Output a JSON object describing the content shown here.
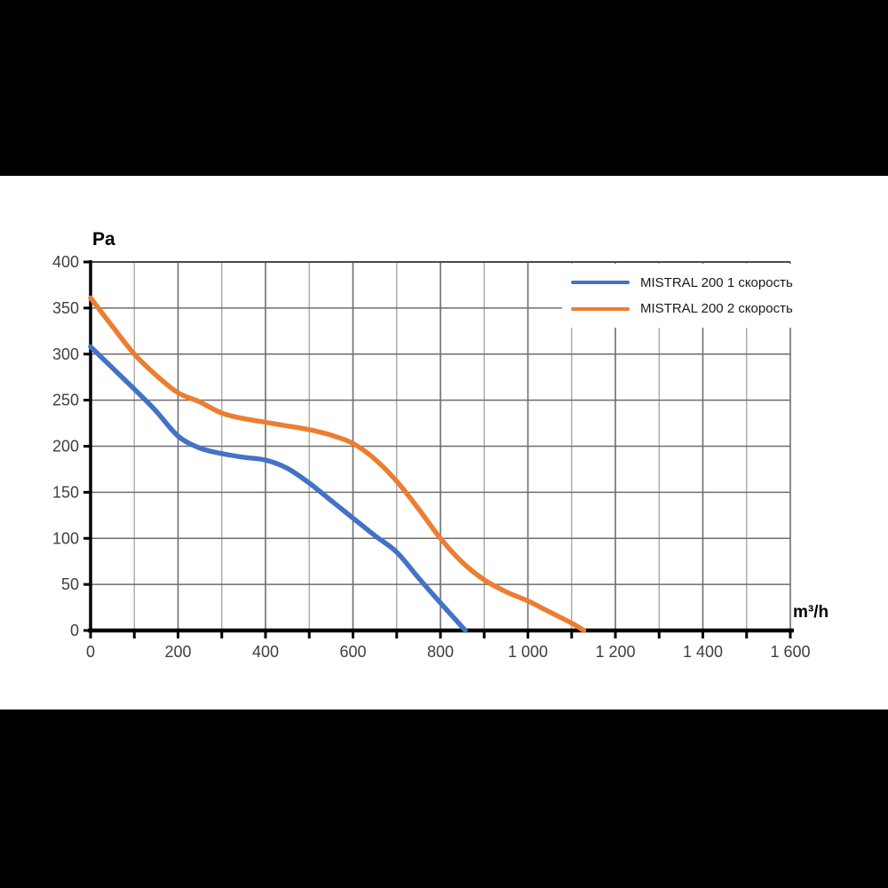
{
  "page": {
    "background_color": "#000000",
    "panel_background_color": "#ffffff"
  },
  "chart_data": {
    "type": "line",
    "title": "",
    "y_axis_title": "Pa",
    "x_axis_title": "m³/h",
    "x_range": [
      0,
      1600
    ],
    "y_range": [
      0,
      400
    ],
    "grid_on": true,
    "legend_position": "top-right",
    "axis_color": "#000000",
    "tick_label_color": "#3f3f3f",
    "grid": {
      "horizontal_color": "#6e6e6e",
      "major_vertical_color": "#6e6e6e",
      "minor_vertical_color": "#9c9c9c",
      "frame_color": "#4a4a4a"
    },
    "x_labeled_ticks": [
      {
        "value": 0,
        "label": "0"
      },
      {
        "value": 200,
        "label": "200"
      },
      {
        "value": 400,
        "label": "400"
      },
      {
        "value": 600,
        "label": "600"
      },
      {
        "value": 800,
        "label": "800"
      },
      {
        "value": 1000,
        "label": "1 000"
      },
      {
        "value": 1200,
        "label": "1 200"
      },
      {
        "value": 1400,
        "label": "1 400"
      },
      {
        "value": 1600,
        "label": "1 600"
      }
    ],
    "x_minor_ticks": [
      100,
      300,
      500,
      700,
      900,
      1100,
      1300,
      1500
    ],
    "y_ticks": [
      {
        "value": 0,
        "label": "0"
      },
      {
        "value": 50,
        "label": "50"
      },
      {
        "value": 100,
        "label": "100"
      },
      {
        "value": 150,
        "label": "150"
      },
      {
        "value": 200,
        "label": "200"
      },
      {
        "value": 250,
        "label": "250"
      },
      {
        "value": 300,
        "label": "300"
      },
      {
        "value": 350,
        "label": "350"
      },
      {
        "value": 400,
        "label": "400"
      }
    ],
    "series": [
      {
        "name": "MISTRAL 200 1 скорость",
        "color": "#4472c4",
        "points": [
          [
            0,
            308
          ],
          [
            50,
            285
          ],
          [
            100,
            262
          ],
          [
            150,
            238
          ],
          [
            200,
            211
          ],
          [
            250,
            198
          ],
          [
            300,
            192
          ],
          [
            350,
            188
          ],
          [
            400,
            185
          ],
          [
            450,
            176
          ],
          [
            500,
            160
          ],
          [
            550,
            141
          ],
          [
            600,
            122
          ],
          [
            650,
            103
          ],
          [
            700,
            85
          ],
          [
            750,
            57
          ],
          [
            800,
            30
          ],
          [
            857,
            0
          ]
        ]
      },
      {
        "name": "MISTRAL 200 2 скорость",
        "color": "#ed7d31",
        "points": [
          [
            0,
            361
          ],
          [
            50,
            330
          ],
          [
            100,
            300
          ],
          [
            150,
            277
          ],
          [
            200,
            258
          ],
          [
            250,
            248
          ],
          [
            300,
            236
          ],
          [
            350,
            230
          ],
          [
            400,
            226
          ],
          [
            450,
            222
          ],
          [
            500,
            218
          ],
          [
            550,
            212
          ],
          [
            600,
            203
          ],
          [
            650,
            186
          ],
          [
            700,
            162
          ],
          [
            750,
            132
          ],
          [
            800,
            100
          ],
          [
            850,
            74
          ],
          [
            900,
            55
          ],
          [
            950,
            42
          ],
          [
            1000,
            32
          ],
          [
            1050,
            20
          ],
          [
            1100,
            8
          ],
          [
            1128,
            0
          ]
        ]
      }
    ]
  }
}
